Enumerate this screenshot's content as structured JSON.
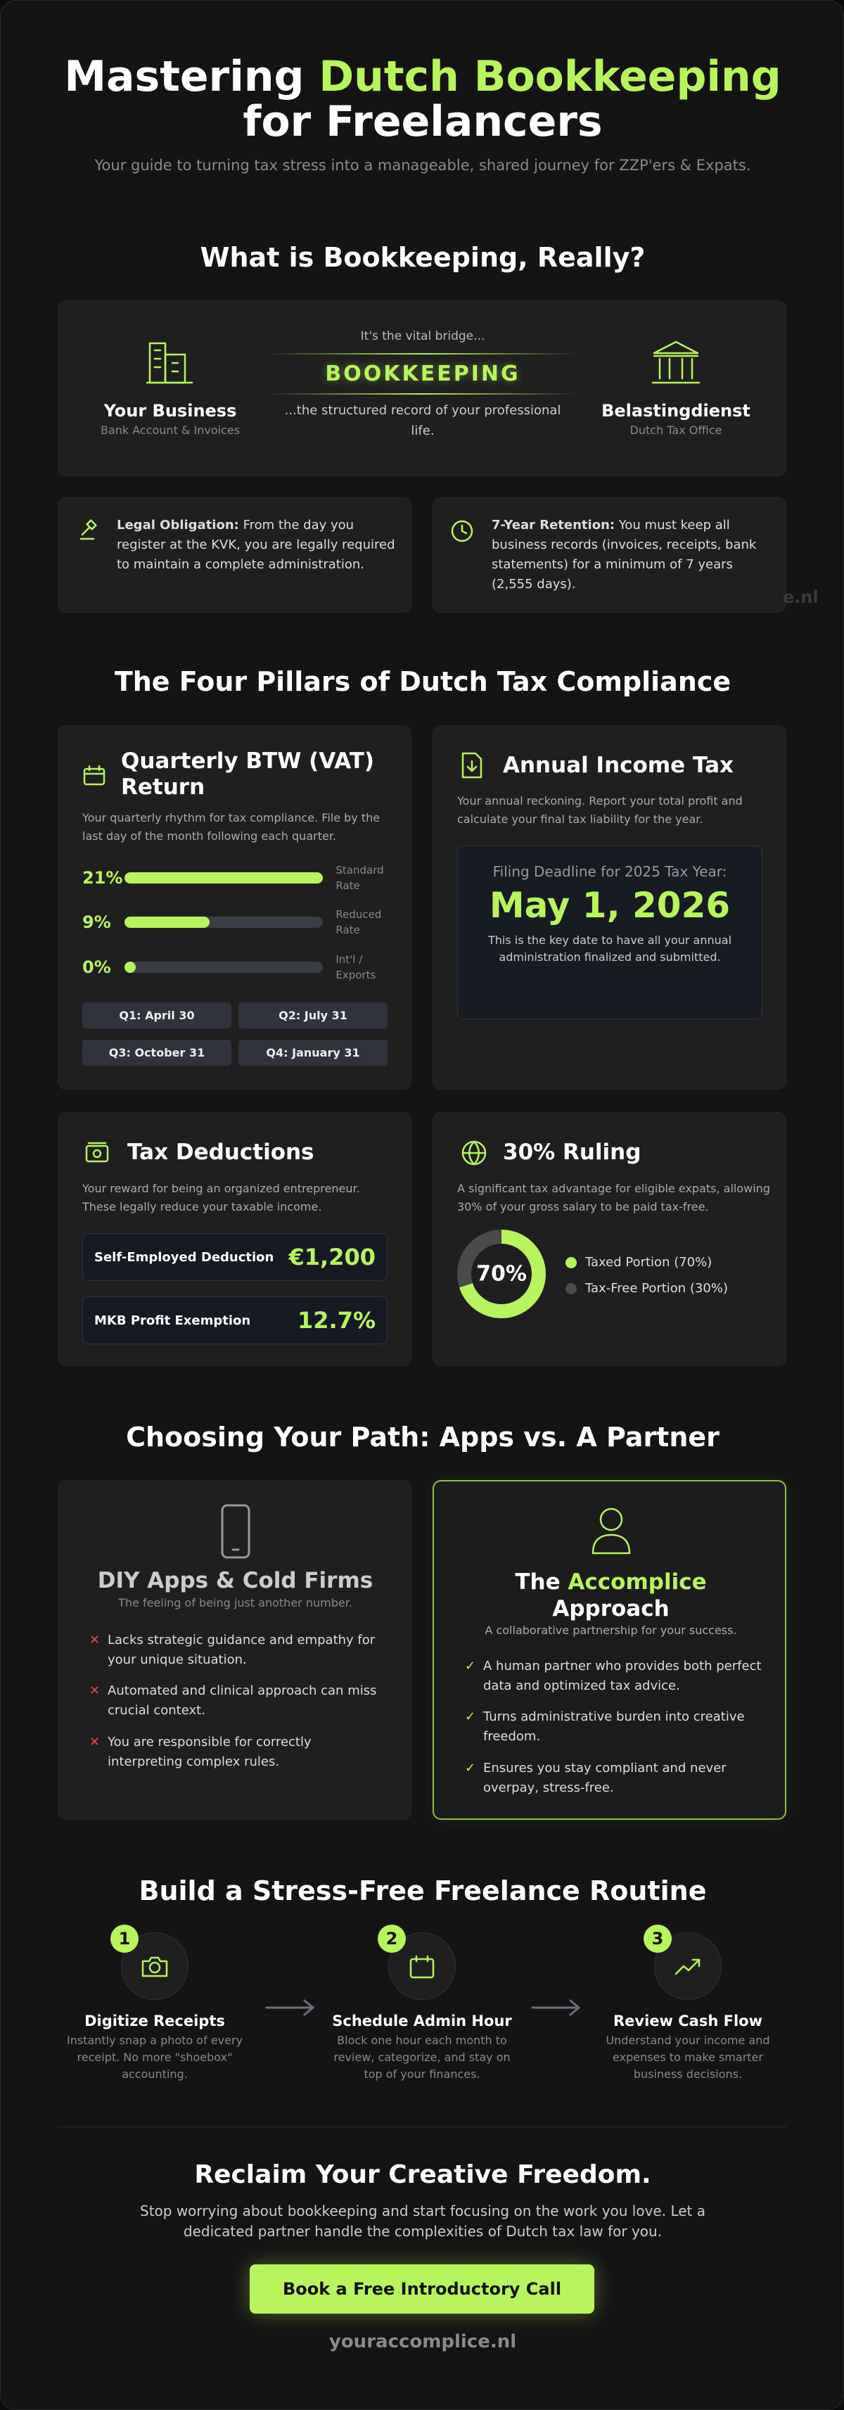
{
  "header": {
    "title_pre": "Mastering ",
    "title_accent": "Dutch Bookkeeping",
    "title_post": "for Freelancers",
    "subtitle": "Your guide to turning tax stress into a manageable, shared journey for ZZP'ers & Expats."
  },
  "what": {
    "heading": "What is Bookkeeping, Really?",
    "left": {
      "title": "Your Business",
      "sub": "Bank Account & Invoices"
    },
    "bridge_top": "It's the vital bridge...",
    "bridge_word": "BOOKKEEPING",
    "bridge_bottom": "...the structured record of your professional life.",
    "right": {
      "title": "Belastingdienst",
      "sub": "Dutch Tax Office"
    },
    "facts": [
      {
        "label": "Legal Obligation:",
        "text": " From the day you register at the KVK, you are legally required to maintain a complete administration."
      },
      {
        "label": "7-Year Retention:",
        "text": " You must keep all business records (invoices, receipts, bank statements) for a minimum of 7 years (2,555 days)."
      }
    ],
    "watermark": "e.nl"
  },
  "pillars": {
    "heading": "The Four Pillars of Dutch Tax Compliance",
    "btw": {
      "title": "Quarterly BTW (VAT) Return",
      "text": "Your quarterly rhythm for tax compliance. File by the last day of the month following each quarter.",
      "rates": [
        {
          "value": 21,
          "label": "21%",
          "name": "Standard Rate"
        },
        {
          "value": 9,
          "label": "9%",
          "name": "Reduced Rate"
        },
        {
          "value": 0,
          "label": "0%",
          "name": "Int'l / Exports"
        }
      ],
      "deadlines": [
        "Q1: April 30",
        "Q2: July 31",
        "Q3: October 31",
        "Q4: January 31"
      ]
    },
    "income": {
      "title": "Annual Income Tax",
      "text": "Your annual reckoning. Report your total profit and calculate your final tax liability for the year.",
      "deadline_label": "Filing Deadline for 2025 Tax Year:",
      "deadline": "May 1, 2026",
      "deadline_note": "This is the key date to have all your annual administration finalized and submitted."
    },
    "deductions": {
      "title": "Tax Deductions",
      "text": "Your reward for being an organized entrepreneur. These legally reduce your taxable income.",
      "items": [
        {
          "name": "Self-Employed Deduction",
          "amount": "€1,200"
        },
        {
          "name": "MKB Profit Exemption",
          "amount": "12.7%"
        }
      ]
    },
    "ruling": {
      "title": "30% Ruling",
      "text": "A significant tax advantage for eligible expats, allowing 30% of your gross salary to be paid tax-free.",
      "center": "70%",
      "slices": [
        {
          "name": "Taxed Portion (70%)",
          "value": 70,
          "color": "#b8f45c"
        },
        {
          "name": "Tax-Free Portion (30%)",
          "value": 30,
          "color": "#4a4a4a"
        }
      ]
    }
  },
  "path": {
    "heading": "Choosing Your Path: Apps vs. A Partner",
    "diy": {
      "title": "DIY Apps & Cold Firms",
      "sub": "The feeling of being just another number.",
      "points": [
        "Lacks strategic guidance and empathy for your unique situation.",
        "Automated and clinical approach can miss crucial context.",
        "You are responsible for correctly interpreting complex rules."
      ]
    },
    "partner": {
      "title_pre": "The ",
      "title_accent": "Accomplice",
      "title_post": "Approach",
      "sub": "A collaborative partnership for your success.",
      "points": [
        "A human partner who provides both perfect data and optimized tax advice.",
        "Turns administrative burden into creative freedom.",
        "Ensures you stay compliant and never overpay, stress-free."
      ]
    }
  },
  "routine": {
    "heading": "Build a Stress-Free Freelance Routine",
    "steps": [
      {
        "number": "1",
        "title": "Digitize Receipts",
        "text": "Instantly snap a photo of every receipt. No more \"shoebox\" accounting."
      },
      {
        "number": "2",
        "title": "Schedule Admin Hour",
        "text": "Block one hour each month to review, categorize, and stay on top of your finances."
      },
      {
        "number": "3",
        "title": "Review Cash Flow",
        "text": "Understand your income and expenses to make smarter business decisions."
      }
    ]
  },
  "cta": {
    "heading": "Reclaim Your Creative Freedom.",
    "text": "Stop worrying about bookkeeping and start focusing on the work you love. Let a dedicated partner handle the complexities of Dutch tax law for you.",
    "button": "Book a Free Introductory Call",
    "site": "youraccomplice.nl"
  }
}
